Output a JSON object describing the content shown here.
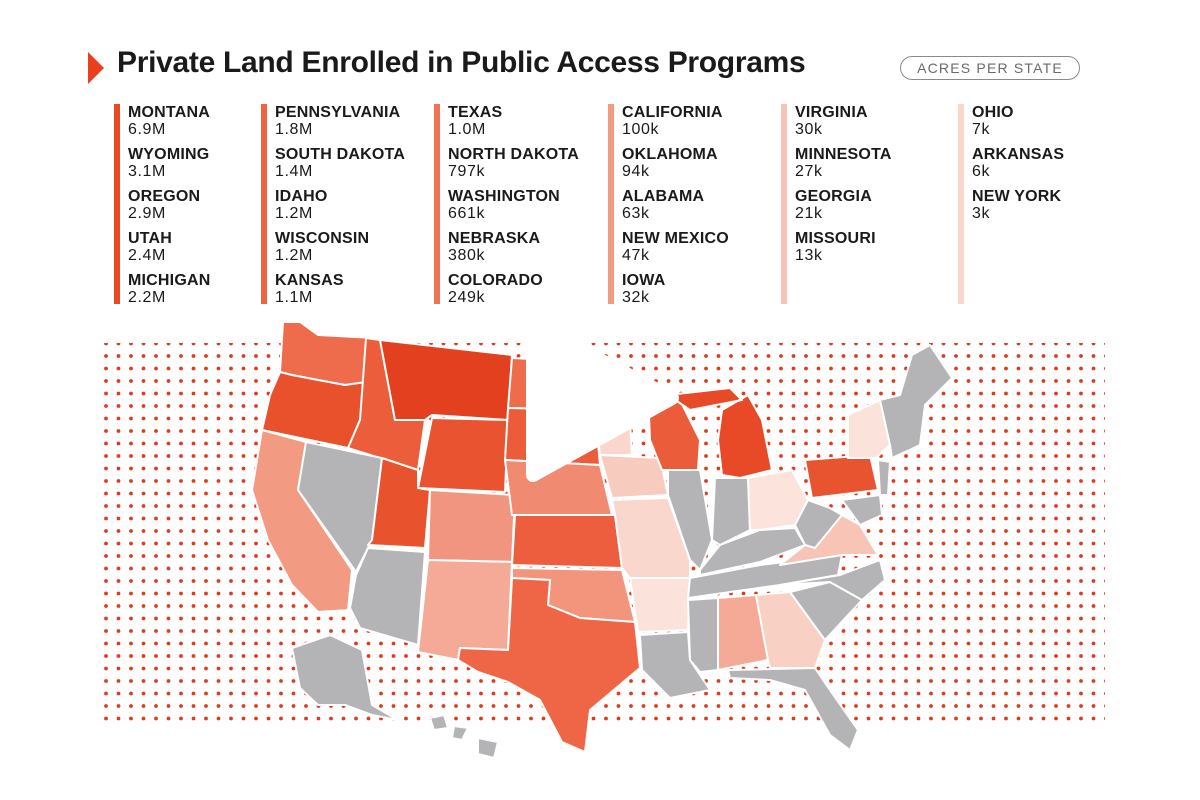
{
  "title": "Private Land Enrolled in Public Access Programs",
  "unit_label": "ACRES PER STATE",
  "legend_columns": [
    {
      "items": [
        {
          "state": "MONTANA",
          "value": "6.9M"
        },
        {
          "state": "WYOMING",
          "value": "3.1M"
        },
        {
          "state": "OREGON",
          "value": "2.9M"
        },
        {
          "state": "UTAH",
          "value": "2.4M"
        },
        {
          "state": "MICHIGAN",
          "value": "2.2M"
        }
      ]
    },
    {
      "items": [
        {
          "state": "PENNSYLVANIA",
          "value": "1.8M"
        },
        {
          "state": "SOUTH DAKOTA",
          "value": "1.4M"
        },
        {
          "state": "IDAHO",
          "value": "1.2M"
        },
        {
          "state": "WISCONSIN",
          "value": "1.2M"
        },
        {
          "state": "KANSAS",
          "value": "1.1M"
        }
      ]
    },
    {
      "items": [
        {
          "state": "TEXAS",
          "value": "1.0M"
        },
        {
          "state": "NORTH DAKOTA",
          "value": "797k"
        },
        {
          "state": "WASHINGTON",
          "value": "661k"
        },
        {
          "state": "NEBRASKA",
          "value": "380k"
        },
        {
          "state": "COLORADO",
          "value": "249k"
        }
      ]
    },
    {
      "items": [
        {
          "state": "CALIFORNIA",
          "value": "100k"
        },
        {
          "state": "OKLAHOMA",
          "value": "94k"
        },
        {
          "state": "ALABAMA",
          "value": "63k"
        },
        {
          "state": "NEW MEXICO",
          "value": "47k"
        },
        {
          "state": "IOWA",
          "value": "32k"
        }
      ]
    },
    {
      "items": [
        {
          "state": "VIRGINIA",
          "value": "30k"
        },
        {
          "state": "MINNESOTA",
          "value": "27k"
        },
        {
          "state": "GEORGIA",
          "value": "21k"
        },
        {
          "state": "MISSOURI",
          "value": "13k"
        }
      ]
    },
    {
      "items": [
        {
          "state": "OHIO",
          "value": "7k"
        },
        {
          "state": "ARKANSAS",
          "value": "6k"
        },
        {
          "state": "NEW YORK",
          "value": "3k"
        }
      ]
    }
  ],
  "colors": {
    "accent": "#e8401e",
    "no_data": "#b4b4b6",
    "dots": "#e03a1c",
    "play_button": "#ffffff"
  },
  "icons": {
    "play": "play-icon",
    "header_marker": "triangle-right-icon"
  }
}
